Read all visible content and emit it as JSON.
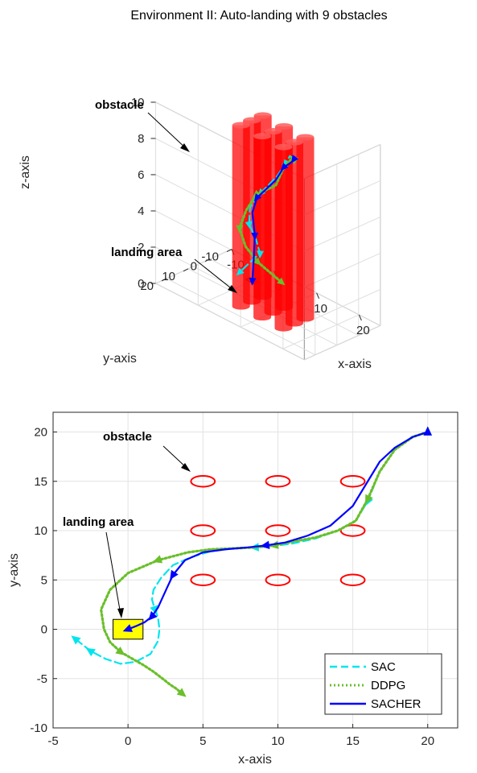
{
  "chart_data": [
    {
      "type": "line",
      "projection": "3d",
      "title": "Environment II: Auto-landing with 9 obstacles",
      "xlabel": "x-axis",
      "ylabel": "y-axis",
      "zlabel": "z-axis",
      "xlim": [
        -10,
        25
      ],
      "ylim": [
        -10,
        25
      ],
      "zlim": [
        0,
        10
      ],
      "x_ticks": [
        -10,
        0,
        10,
        20
      ],
      "y_ticks": [
        -10,
        0,
        10,
        20
      ],
      "z_ticks": [
        0,
        2,
        4,
        6,
        8,
        10
      ],
      "x_tick_labels": [
        "-10",
        "0",
        "10",
        "20"
      ],
      "y_tick_labels": [
        "-10",
        "0",
        "10",
        "20"
      ],
      "z_tick_labels": [
        "0",
        "2",
        "4",
        "6",
        "8",
        "10"
      ],
      "grid": true,
      "annotations": [
        "obstacle",
        "landing area"
      ],
      "obstacles": {
        "color": "#ff0000",
        "radius": 1,
        "height": 10,
        "centers": [
          [
            5,
            5
          ],
          [
            10,
            5
          ],
          [
            15,
            5
          ],
          [
            5,
            10
          ],
          [
            10,
            10
          ],
          [
            15,
            10
          ],
          [
            5,
            15
          ],
          [
            10,
            15
          ],
          [
            15,
            15
          ]
        ]
      },
      "landing_area": {
        "x": [
          -1,
          1
        ],
        "y": [
          -1,
          1
        ],
        "color": "#ffff00"
      },
      "series": [
        {
          "name": "SAC",
          "color": "#00e5ee",
          "style": "dashed",
          "marker": "triangle",
          "points": [
            [
              20,
              20,
              10.2
            ],
            [
              17,
              16,
              9.8
            ],
            [
              14,
              12,
              8.8
            ],
            [
              10,
              8.4,
              7.4
            ],
            [
              6,
              7.8,
              6
            ],
            [
              3,
              7,
              4.8
            ],
            [
              1.8,
              5,
              3.6
            ],
            [
              1.9,
              2,
              2.6
            ],
            [
              1.3,
              -1,
              1.6
            ],
            [
              -1,
              -3.2,
              1
            ],
            [
              -3.5,
              -1,
              0
            ]
          ]
        },
        {
          "name": "DDPG",
          "color": "#6abf2a",
          "style": "dotted",
          "marker": "triangle",
          "points": [
            [
              20,
              20,
              10.2
            ],
            [
              16,
              13,
              9.4
            ],
            [
              12,
              9,
              8.2
            ],
            [
              9.8,
              8.4,
              6.9
            ],
            [
              5,
              8,
              5.8
            ],
            [
              2,
              6.8,
              4.5
            ],
            [
              -1,
              4,
              3
            ],
            [
              -1.6,
              0,
              1.7
            ],
            [
              0,
              -2.5,
              0.9
            ],
            [
              3.5,
              -6.5,
              0
            ]
          ]
        },
        {
          "name": "SACHER",
          "color": "#0000ff",
          "style": "solid",
          "marker": "triangle",
          "points": [
            [
              20,
              20,
              10.2
            ],
            [
              16,
              13,
              9.2
            ],
            [
              12,
              9,
              8.2
            ],
            [
              9.8,
              8.4,
              7.2
            ],
            [
              5,
              7.7,
              5.6
            ],
            [
              2.8,
              5.5,
              4.4
            ],
            [
              1.6,
              2,
              2.8
            ],
            [
              0.3,
              0,
              1.2
            ],
            [
              0,
              0,
              0
            ]
          ]
        }
      ]
    },
    {
      "type": "line",
      "xlabel": "x-axis",
      "ylabel": "y-axis",
      "xlim": [
        -5,
        22
      ],
      "ylim": [
        -10,
        22
      ],
      "x_ticks": [
        -5,
        0,
        5,
        10,
        15,
        20
      ],
      "y_ticks": [
        -10,
        -5,
        0,
        5,
        10,
        15,
        20
      ],
      "x_tick_labels": [
        "-5",
        "0",
        "5",
        "10",
        "15",
        "20"
      ],
      "y_tick_labels": [
        "-10",
        "-5",
        "0",
        "5",
        "10",
        "15",
        "20"
      ],
      "grid": true,
      "legend": "bottom-right",
      "legend_entries": [
        "SAC",
        "DDPG",
        "SACHER"
      ],
      "annotations": [
        "obstacle",
        "landing area"
      ],
      "obstacles": {
        "color": "#ff0000",
        "rx": 0.8,
        "ry": 0.55,
        "centers": [
          [
            5,
            5
          ],
          [
            10,
            5
          ],
          [
            15,
            5
          ],
          [
            5,
            10
          ],
          [
            10,
            10
          ],
          [
            15,
            10
          ],
          [
            5,
            15
          ],
          [
            10,
            15
          ],
          [
            15,
            15
          ]
        ]
      },
      "landing_area": {
        "x": [
          -1,
          1
        ],
        "y": [
          -1,
          1
        ],
        "color": "#ffff00"
      },
      "series": [
        {
          "name": "SAC",
          "color": "#00e5ee",
          "style": "dashed",
          "marker": "triangle",
          "marker_idx": [
            4,
            10,
            18,
            26,
            31
          ],
          "x": [
            20,
            19,
            17.8,
            16.8,
            16,
            15.2,
            14,
            12.5,
            11,
            10,
            8.5,
            7,
            5.5,
            4.2,
            3,
            2.2,
            1.7,
            1.6,
            1.8,
            2,
            2.1,
            2,
            1.5,
            0.5,
            -0.5,
            -1.5,
            -2.5,
            -3.5
          ],
          "y": [
            20,
            19.5,
            18.2,
            16,
            13,
            11,
            10,
            9.2,
            8.7,
            8.5,
            8.3,
            8.2,
            7.9,
            7.3,
            6.5,
            5.2,
            4,
            3,
            2,
            1.2,
            0,
            -1.2,
            -2.5,
            -3.3,
            -3.5,
            -3,
            -2.2,
            -1
          ]
        },
        {
          "name": "DDPG",
          "color": "#6abf2a",
          "style": "dotted",
          "marker": "triangle",
          "marker_idx": [
            4,
            9,
            14,
            20,
            27
          ],
          "x": [
            20,
            19,
            17.8,
            16.8,
            16,
            15.2,
            14,
            12.5,
            11,
            9.8,
            8.5,
            7,
            5.5,
            4,
            2,
            0,
            -1.2,
            -1.8,
            -1.6,
            -1.2,
            -0.5,
            0.3,
            1,
            1.7,
            2.3,
            2.8,
            3.2,
            3.6
          ],
          "y": [
            20,
            19.5,
            18.2,
            16,
            13.2,
            11,
            10,
            9.3,
            8.9,
            8.5,
            8.3,
            8.2,
            8.1,
            7.8,
            7,
            5.7,
            4,
            2,
            0,
            -1.3,
            -2.3,
            -3,
            -3.6,
            -4.3,
            -5,
            -5.6,
            -6,
            -6.5
          ]
        },
        {
          "name": "SACHER",
          "color": "#0000ff",
          "style": "solid",
          "marker": "triangle",
          "marker_idx": [
            9,
            14,
            18,
            21
          ],
          "x": [
            20,
            19,
            17.8,
            16.8,
            16,
            15,
            13.5,
            12,
            10.5,
            9.2,
            8,
            6.5,
            5,
            3.8,
            3,
            2.6,
            2.3,
            2,
            1.6,
            1.1,
            0.5,
            0
          ],
          "y": [
            20,
            19.5,
            18.4,
            17,
            15,
            12.5,
            10.5,
            9.5,
            8.8,
            8.5,
            8.3,
            8.1,
            7.8,
            7,
            5.5,
            4.2,
            3.2,
            2.2,
            1.3,
            0.7,
            0.3,
            0
          ]
        }
      ]
    }
  ]
}
